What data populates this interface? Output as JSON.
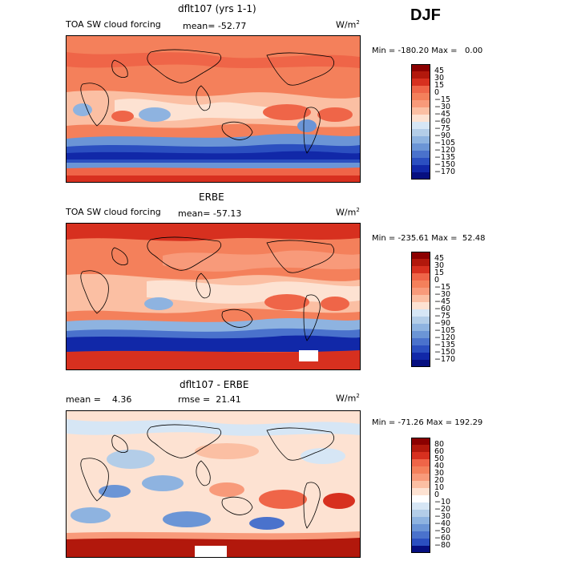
{
  "season": "DJF",
  "panels": [
    {
      "title": "dflt107 (yrs 1-1)",
      "left_label": "TOA SW cloud forcing",
      "center_label": "mean= -52.77",
      "units": "W/m",
      "units_exp": "2",
      "minmax": "Min = -180.20 Max =   0.00",
      "levels": [
        "45",
        "30",
        "15",
        "0",
        "−15",
        "−30",
        "−45",
        "−60",
        "−75",
        "−90",
        "−105",
        "−120",
        "−135",
        "−150",
        "−170"
      ]
    },
    {
      "title": "ERBE",
      "left_label": "TOA SW cloud forcing",
      "center_label": "mean= -57.13",
      "units": "W/m",
      "units_exp": "2",
      "minmax": "Min = -235.61 Max =  52.48",
      "levels": [
        "45",
        "30",
        "15",
        "0",
        "−15",
        "−30",
        "−45",
        "−60",
        "−75",
        "−90",
        "−105",
        "−120",
        "−135",
        "−150",
        "−170"
      ]
    },
    {
      "title": "dflt107 - ERBE",
      "left_label": "mean =    4.36",
      "center_label": "rmse =  21.41",
      "units": "W/m",
      "units_exp": "2",
      "minmax": "Min = -71.26 Max = 192.29",
      "levels": [
        "80",
        "60",
        "50",
        "40",
        "30",
        "20",
        "10",
        "0",
        "−10",
        "−20",
        "−30",
        "−40",
        "−50",
        "−60",
        "−80"
      ]
    }
  ],
  "colors": {
    "scale_a": [
      "#8b0000",
      "#b2180c",
      "#d7301f",
      "#ef6548",
      "#f4805b",
      "#f89a7a",
      "#fbbfa3",
      "#fde2d2",
      "#d6e6f5",
      "#b3cde8",
      "#8eb3e0",
      "#6b95d6",
      "#4a72cc",
      "#2b4fc0",
      "#1128a8",
      "#060f80"
    ],
    "scale_b": [
      "#8b0000",
      "#b2180c",
      "#d7301f",
      "#ef6548",
      "#f4805b",
      "#f89a7a",
      "#fbbfa3",
      "#fde2d2",
      "#ffffff",
      "#d6e6f5",
      "#b3cde8",
      "#8eb3e0",
      "#6b95d6",
      "#4a72cc",
      "#2b4fc0",
      "#060f80"
    ]
  }
}
